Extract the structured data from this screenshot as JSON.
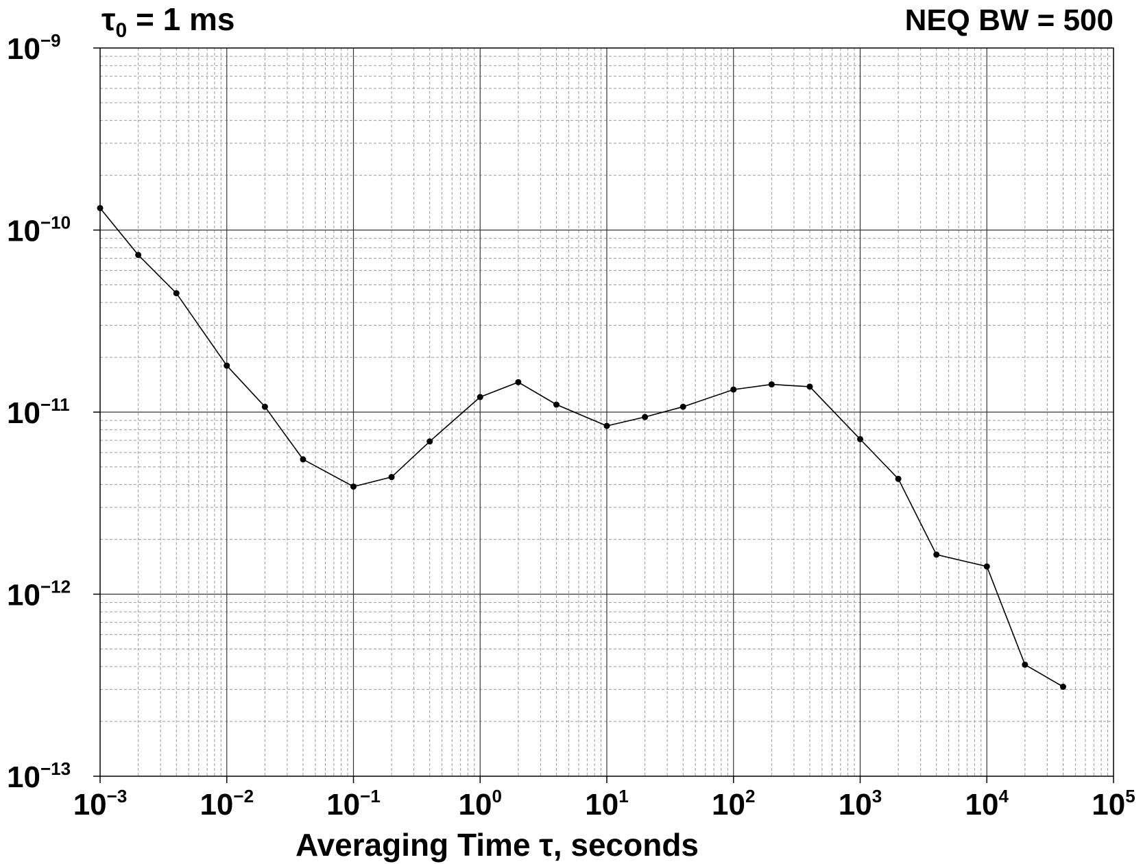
{
  "chart_data": {
    "type": "line",
    "title_left": {
      "main": "τ",
      "sub": "0",
      "rest": " = 1 ms"
    },
    "title_right": "NEQ BW = 500",
    "xlabel": "Averaging Time τ, seconds",
    "ylabel": "",
    "x_scale": "log",
    "y_scale": "log",
    "xlim": [
      0.001,
      100000
    ],
    "ylim": [
      1e-13,
      1e-09
    ],
    "x_ticks": [
      {
        "base": "10",
        "exp": "−3",
        "value": 0.001
      },
      {
        "base": "10",
        "exp": "−2",
        "value": 0.01
      },
      {
        "base": "10",
        "exp": "−1",
        "value": 0.1
      },
      {
        "base": "10",
        "exp": "0",
        "value": 1
      },
      {
        "base": "10",
        "exp": "1",
        "value": 10
      },
      {
        "base": "10",
        "exp": "2",
        "value": 100
      },
      {
        "base": "10",
        "exp": "3",
        "value": 1000
      },
      {
        "base": "10",
        "exp": "4",
        "value": 10000
      },
      {
        "base": "10",
        "exp": "5",
        "value": 100000
      }
    ],
    "y_ticks": [
      {
        "base": "10",
        "exp": "−9",
        "value": 1e-09
      },
      {
        "base": "10",
        "exp": "−10",
        "value": 1e-10
      },
      {
        "base": "10",
        "exp": "−11",
        "value": 1e-11
      },
      {
        "base": "10",
        "exp": "−12",
        "value": 1e-12
      },
      {
        "base": "10",
        "exp": "−13",
        "value": 1e-13
      }
    ],
    "grid": true,
    "minor_grid": true,
    "line_color": "#000000",
    "marker": "dot",
    "series": [
      {
        "x": [
          0.001,
          0.002,
          0.004,
          0.01,
          0.02,
          0.04,
          0.1,
          0.2,
          0.4,
          1,
          2,
          4,
          10,
          20,
          40,
          100,
          200,
          400,
          1000,
          2000,
          4000,
          10000,
          20000,
          40000
        ],
        "y": [
          1.32e-10,
          7.3e-11,
          4.5e-11,
          1.8e-11,
          1.07e-11,
          5.5e-12,
          3.9e-12,
          4.4e-12,
          6.9e-12,
          1.21e-11,
          1.46e-11,
          1.1e-11,
          8.4e-12,
          9.4e-12,
          1.07e-11,
          1.33e-11,
          1.42e-11,
          1.38e-11,
          7.1e-12,
          4.3e-12,
          1.65e-12,
          1.42e-12,
          4.1e-13,
          3.1e-13
        ]
      }
    ]
  }
}
